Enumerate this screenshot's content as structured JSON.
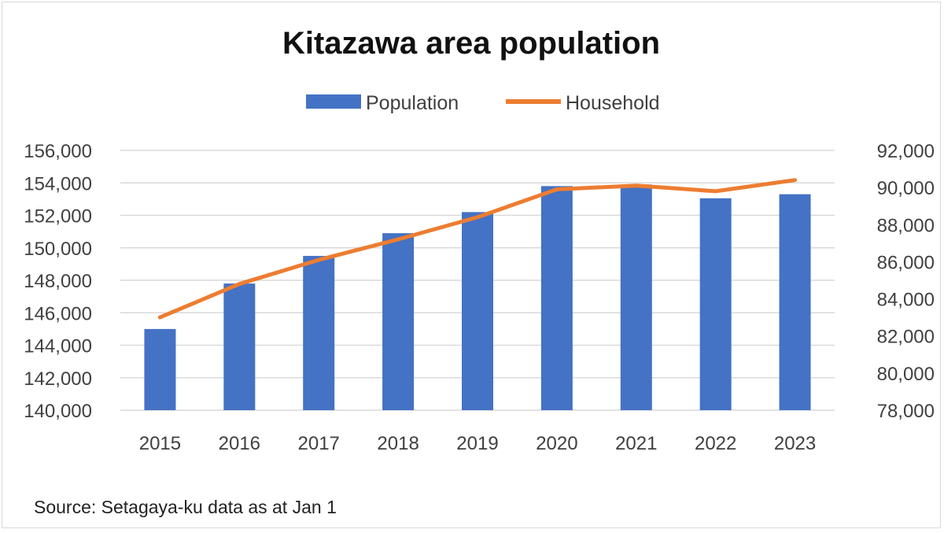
{
  "chart_data": {
    "type": "bar",
    "title": "Kitazawa area population",
    "source": "Source: Setagaya-ku data as at Jan 1",
    "categories": [
      "2015",
      "2016",
      "2017",
      "2018",
      "2019",
      "2020",
      "2021",
      "2022",
      "2023"
    ],
    "series": [
      {
        "name": "Population",
        "type": "bar",
        "axis": "left",
        "color": "#4472C4",
        "values": [
          145000,
          147800,
          149500,
          150900,
          152200,
          153800,
          153900,
          153050,
          153300
        ]
      },
      {
        "name": "Household",
        "type": "line",
        "axis": "right",
        "color": "#ED7D31",
        "values": [
          83000,
          84800,
          86100,
          87200,
          88400,
          89900,
          90100,
          89800,
          90400
        ]
      }
    ],
    "y_left": {
      "min": 140000,
      "max": 156000,
      "step": 2000,
      "ticks": [
        "140,000",
        "142,000",
        "144,000",
        "146,000",
        "148,000",
        "150,000",
        "152,000",
        "154,000",
        "156,000"
      ]
    },
    "y_right": {
      "min": 78000,
      "max": 92000,
      "step": 2000,
      "ticks": [
        "78,000",
        "80,000",
        "82,000",
        "84,000",
        "86,000",
        "88,000",
        "90,000",
        "92,000"
      ]
    },
    "legend_position": "top-center",
    "grid": true
  }
}
